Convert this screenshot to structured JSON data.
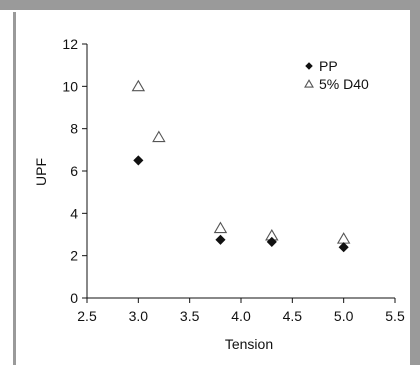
{
  "chart_data": {
    "type": "scatter",
    "title": "",
    "xlabel": "Tension",
    "ylabel": "UPF",
    "xlim": [
      2.5,
      5.5
    ],
    "ylim": [
      0,
      12
    ],
    "x_ticks": [
      2.5,
      3.0,
      3.5,
      4.0,
      4.5,
      5.0,
      5.5
    ],
    "x_tick_labels": [
      "2.5",
      "3.0",
      "3.5",
      "4.0",
      "4.5",
      "5.0",
      "5.5"
    ],
    "y_ticks": [
      0,
      2,
      4,
      6,
      8,
      10,
      12
    ],
    "y_tick_labels": [
      "0",
      "2",
      "4",
      "6",
      "8",
      "10",
      "12"
    ],
    "grid": false,
    "legend_position": "top-right",
    "series": [
      {
        "name": "PP",
        "marker": "filled-diamond",
        "color": "#111111",
        "points": [
          {
            "x": 3.0,
            "y": 6.5
          },
          {
            "x": 3.8,
            "y": 2.75
          },
          {
            "x": 4.3,
            "y": 2.65
          },
          {
            "x": 5.0,
            "y": 2.4
          }
        ]
      },
      {
        "name": "5% D40",
        "marker": "open-triangle",
        "color": "#555555",
        "points": [
          {
            "x": 3.0,
            "y": 10.0
          },
          {
            "x": 3.2,
            "y": 7.6
          },
          {
            "x": 3.8,
            "y": 3.3
          },
          {
            "x": 4.3,
            "y": 2.95
          },
          {
            "x": 5.0,
            "y": 2.8
          }
        ]
      }
    ],
    "border_color": "#9a9a9a"
  }
}
